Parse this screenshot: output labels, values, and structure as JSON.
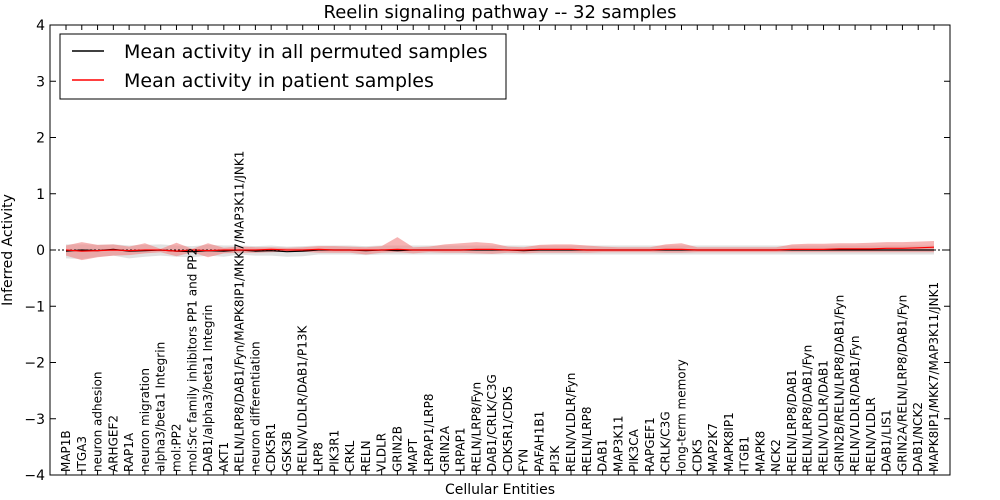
{
  "chart_data": {
    "type": "line",
    "title": "Reelin signaling pathway -- 32 samples",
    "xlabel": "Cellular Entities",
    "ylabel": "Inferred Activity",
    "ylim": [
      -4,
      4
    ],
    "yticks": [
      4,
      3,
      2,
      1,
      0,
      -1,
      -2,
      -3,
      -4
    ],
    "ytick_labels": [
      "4",
      "3",
      "2",
      "1",
      "0",
      "−1",
      "−2",
      "−3",
      "−4"
    ],
    "legend": {
      "placement": "top-left"
    },
    "categories": [
      "MAP1B",
      "ITGA3",
      "neuron adhesion",
      "ARHGEF2",
      "RAP1A",
      "neuron migration",
      "alpha3/beta1 Integrin",
      "mol:PP2",
      "mol:Src family inhibitors PP1 and PP2",
      "DAB1/alpha3/beta1 Integrin",
      "AKT1",
      "RELN/LRP8/DAB1/Fyn/MAPK8IP1/MKK7/MAP3K11/JNK1",
      "neuron differentiation",
      "CDK5R1",
      "GSK3B",
      "RELN/VLDLR/DAB1/P13K",
      "LRP8",
      "PIK3R1",
      "CRKL",
      "RELN",
      "VLDLR",
      "GRIN2B",
      "MAPT",
      "LRPAP1/LRP8",
      "GRIN2A",
      "LRPAP1",
      "RELN/LRP8/Fyn",
      "DAB1/CRLK/C3G",
      "CDK5R1/CDK5",
      "FYN",
      "PAFAH1B1",
      "PI3K",
      "RELN/VLDLR/Fyn",
      "RELN/LRP8",
      "DAB1",
      "MAP3K11",
      "PIK3CA",
      "RAPGEF1",
      "CRLK/C3G",
      "long-term memory",
      "CDK5",
      "MAP2K7",
      "MAPK8IP1",
      "ITGB1",
      "MAPK8",
      "NCK2",
      "RELN/LRP8/DAB1",
      "RELN/LRP8/DAB1/Fyn",
      "RELN/VLDLR/DAB1",
      "GRIN2B/RELN/LRP8/DAB1/Fyn",
      "RELN/VLDLR/DAB1/Fyn",
      "RELN/VLDLR",
      "DAB1/LIS1",
      "GRIN2A/RELN/LRP8/DAB1/Fyn",
      "DAB1/NCK2",
      "MAPK8IP1/MKK7/MAP3K11/JNK1"
    ],
    "series": [
      {
        "name": "Mean activity in all permuted samples",
        "color": "#000000",
        "values": [
          -0.02,
          0.0,
          -0.01,
          0.01,
          -0.02,
          -0.01,
          0.0,
          -0.02,
          -0.03,
          -0.01,
          -0.02,
          0.0,
          -0.02,
          -0.01,
          -0.03,
          -0.02,
          0.0,
          0.0,
          0.0,
          -0.01,
          0.0,
          -0.01,
          0.0,
          0.0,
          0.0,
          0.0,
          0.0,
          0.0,
          0.0,
          -0.01,
          0.0,
          0.0,
          0.0,
          0.0,
          0.0,
          0.0,
          0.0,
          0.0,
          0.0,
          0.0,
          0.0,
          0.0,
          0.0,
          0.0,
          0.0,
          0.0,
          0.0,
          0.0,
          0.0,
          0.0,
          0.0,
          0.0,
          0.0,
          0.0,
          0.0,
          0.0
        ],
        "band_lower": [
          -0.15,
          -0.16,
          -0.12,
          -0.1,
          -0.15,
          -0.12,
          -0.1,
          -0.12,
          -0.13,
          -0.1,
          -0.12,
          -0.08,
          -0.1,
          -0.1,
          -0.12,
          -0.11,
          -0.08,
          -0.08,
          -0.08,
          -0.09,
          -0.08,
          -0.08,
          -0.08,
          -0.08,
          -0.08,
          -0.08,
          -0.08,
          -0.08,
          -0.08,
          -0.08,
          -0.08,
          -0.08,
          -0.08,
          -0.08,
          -0.08,
          -0.08,
          -0.08,
          -0.08,
          -0.08,
          -0.08,
          -0.08,
          -0.08,
          -0.08,
          -0.08,
          -0.08,
          -0.08,
          -0.08,
          -0.08,
          -0.08,
          -0.08,
          -0.08,
          -0.08,
          -0.08,
          -0.08,
          -0.08,
          -0.08
        ],
        "band_upper": [
          0.1,
          0.1,
          0.09,
          0.1,
          0.08,
          0.09,
          0.1,
          0.08,
          0.07,
          0.09,
          0.08,
          0.08,
          0.07,
          0.08,
          0.06,
          0.07,
          0.08,
          0.08,
          0.08,
          0.07,
          0.08,
          0.08,
          0.08,
          0.08,
          0.08,
          0.08,
          0.08,
          0.08,
          0.08,
          0.08,
          0.08,
          0.08,
          0.08,
          0.08,
          0.08,
          0.08,
          0.08,
          0.08,
          0.08,
          0.08,
          0.08,
          0.08,
          0.08,
          0.08,
          0.08,
          0.08,
          0.08,
          0.08,
          0.08,
          0.08,
          0.08,
          0.08,
          0.08,
          0.08,
          0.08,
          0.08
        ]
      },
      {
        "name": "Mean activity in patient samples",
        "color": "#ff0000",
        "values": [
          0.0,
          -0.02,
          -0.01,
          0.0,
          -0.01,
          0.0,
          0.0,
          -0.02,
          0.0,
          -0.01,
          0.0,
          0.0,
          0.0,
          0.01,
          0.0,
          0.0,
          0.01,
          0.0,
          0.0,
          0.0,
          0.0,
          0.01,
          0.0,
          0.0,
          0.0,
          0.0,
          0.01,
          0.01,
          0.0,
          0.0,
          0.01,
          0.01,
          0.01,
          0.0,
          0.0,
          0.0,
          0.0,
          0.0,
          0.01,
          0.01,
          0.0,
          0.0,
          0.0,
          0.0,
          0.0,
          0.0,
          0.01,
          0.01,
          0.01,
          0.02,
          0.02,
          0.02,
          0.03,
          0.03,
          0.04,
          0.05
        ],
        "band_lower": [
          -0.1,
          -0.18,
          -0.13,
          -0.1,
          -0.09,
          -0.06,
          -0.04,
          -0.11,
          -0.04,
          -0.13,
          -0.06,
          -0.05,
          -0.05,
          -0.04,
          -0.03,
          -0.03,
          -0.05,
          -0.05,
          -0.05,
          -0.08,
          -0.05,
          -0.04,
          -0.06,
          -0.04,
          -0.05,
          -0.05,
          -0.06,
          -0.07,
          -0.05,
          -0.06,
          -0.05,
          -0.05,
          -0.05,
          -0.05,
          -0.04,
          -0.04,
          -0.04,
          -0.04,
          -0.05,
          -0.05,
          -0.04,
          -0.04,
          -0.04,
          -0.04,
          -0.04,
          -0.04,
          -0.04,
          -0.04,
          -0.04,
          -0.04,
          -0.04,
          -0.04,
          -0.04,
          -0.04,
          -0.04,
          -0.04
        ],
        "band_upper": [
          0.08,
          0.14,
          0.09,
          0.1,
          0.06,
          0.12,
          0.02,
          0.13,
          0.02,
          0.12,
          0.04,
          0.06,
          0.05,
          0.05,
          0.04,
          0.05,
          0.07,
          0.07,
          0.06,
          0.05,
          0.07,
          0.23,
          0.05,
          0.06,
          0.1,
          0.12,
          0.14,
          0.12,
          0.06,
          0.05,
          0.09,
          0.1,
          0.1,
          0.08,
          0.06,
          0.05,
          0.05,
          0.05,
          0.1,
          0.12,
          0.05,
          0.05,
          0.05,
          0.05,
          0.05,
          0.05,
          0.1,
          0.11,
          0.11,
          0.12,
          0.12,
          0.13,
          0.14,
          0.14,
          0.15,
          0.16
        ]
      }
    ]
  }
}
